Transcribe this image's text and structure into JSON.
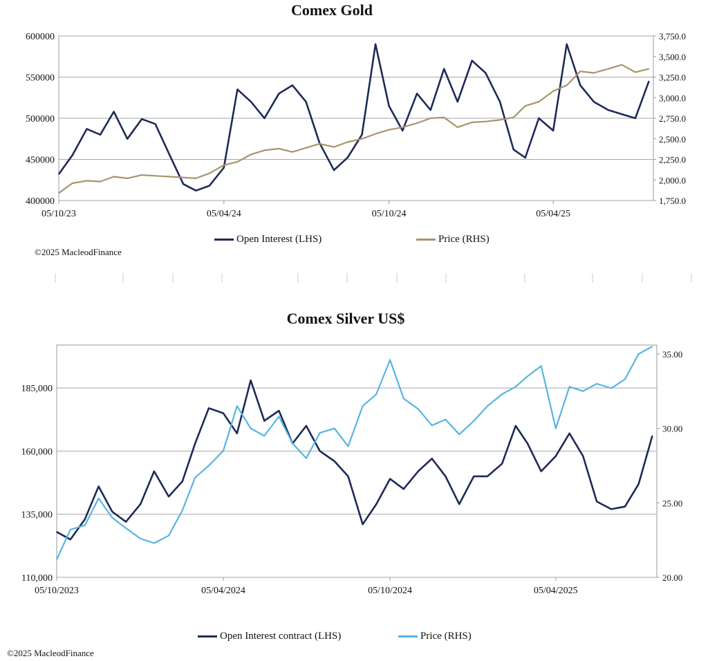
{
  "chart_data": [
    {
      "type": "line",
      "title": "Comex Gold",
      "x_ticks": [
        "05/10/23",
        "05/04/24",
        "05/10/24",
        "05/04/25"
      ],
      "y_left_ticks": [
        "400000",
        "450000",
        "500000",
        "550000",
        "600000"
      ],
      "y_left_lim": [
        400000,
        600000
      ],
      "y_right_ticks": [
        "1,750.0",
        "2,000.0",
        "2,250.0",
        "2,500.0",
        "2,750.0",
        "3,000.0",
        "3,250.0",
        "3,500.0",
        "3,750.0"
      ],
      "y_right_lim": [
        1750,
        3750
      ],
      "grid": true,
      "legend_position": "bottom",
      "colors": {
        "open_interest": "#1d2a57",
        "price": "#a8946a"
      },
      "series": [
        {
          "name": "Open Interest (LHS)",
          "axis": "left",
          "x": [
            "2023-10-05",
            "2023-10-20",
            "2023-11-05",
            "2023-11-20",
            "2023-12-05",
            "2023-12-20",
            "2024-01-05",
            "2024-01-20",
            "2024-02-05",
            "2024-02-20",
            "2024-03-05",
            "2024-03-20",
            "2024-04-05",
            "2024-04-20",
            "2024-05-05",
            "2024-05-20",
            "2024-06-05",
            "2024-06-20",
            "2024-07-05",
            "2024-07-20",
            "2024-08-05",
            "2024-08-20",
            "2024-09-05",
            "2024-09-20",
            "2024-10-05",
            "2024-10-20",
            "2024-11-05",
            "2024-11-20",
            "2024-12-05",
            "2024-12-20",
            "2025-01-05",
            "2025-01-20",
            "2025-02-05",
            "2025-02-20",
            "2025-03-05",
            "2025-03-20",
            "2025-04-05",
            "2025-04-20",
            "2025-05-05",
            "2025-05-20",
            "2025-06-05",
            "2025-06-20",
            "2025-07-05",
            "2025-07-20"
          ],
          "values": [
            432000,
            455000,
            487000,
            480000,
            508000,
            475000,
            499000,
            493000,
            455000,
            420000,
            412000,
            418000,
            440000,
            535000,
            520000,
            500000,
            530000,
            540000,
            520000,
            470000,
            437000,
            452000,
            480000,
            590000,
            515000,
            485000,
            530000,
            510000,
            560000,
            520000,
            570000,
            555000,
            520000,
            462000,
            452000,
            500000,
            485000,
            590000,
            540000,
            520000,
            510000,
            505000,
            500000,
            545000
          ]
        },
        {
          "name": "Price (RHS)",
          "axis": "right",
          "x": [
            "2023-10-05",
            "2023-10-20",
            "2023-11-05",
            "2023-11-20",
            "2023-12-05",
            "2023-12-20",
            "2024-01-05",
            "2024-01-20",
            "2024-02-05",
            "2024-02-20",
            "2024-03-05",
            "2024-03-20",
            "2024-04-05",
            "2024-04-20",
            "2024-05-05",
            "2024-05-20",
            "2024-06-05",
            "2024-06-20",
            "2024-07-05",
            "2024-07-20",
            "2024-08-05",
            "2024-08-20",
            "2024-09-05",
            "2024-09-20",
            "2024-10-05",
            "2024-10-20",
            "2024-11-05",
            "2024-11-20",
            "2024-12-05",
            "2024-12-20",
            "2025-01-05",
            "2025-01-20",
            "2025-02-05",
            "2025-02-20",
            "2025-03-05",
            "2025-03-20",
            "2025-04-05",
            "2025-04-20",
            "2025-05-05",
            "2025-05-20",
            "2025-06-05",
            "2025-06-20",
            "2025-07-05",
            "2025-07-20"
          ],
          "values": [
            1840,
            1960,
            1990,
            1980,
            2040,
            2020,
            2060,
            2050,
            2040,
            2030,
            2020,
            2080,
            2180,
            2220,
            2310,
            2360,
            2380,
            2340,
            2390,
            2440,
            2400,
            2460,
            2500,
            2560,
            2610,
            2640,
            2690,
            2750,
            2760,
            2640,
            2700,
            2710,
            2730,
            2760,
            2900,
            2950,
            3080,
            3150,
            3320,
            3300,
            3350,
            3400,
            3310,
            3350
          ]
        }
      ]
    },
    {
      "type": "line",
      "title": "Comex Silver US$",
      "x_ticks": [
        "05/10/2023",
        "05/04/2024",
        "05/10/2024",
        "05/04/2025"
      ],
      "y_left_ticks": [
        "110,000",
        "135,000",
        "160,000",
        "185,000"
      ],
      "y_left_lim": [
        110000,
        202000
      ],
      "y_right_ticks": [
        "20.00",
        "25.00",
        "30.00",
        "35.00"
      ],
      "y_right_lim": [
        20,
        35.6
      ],
      "grid": true,
      "legend_position": "bottom",
      "colors": {
        "open_interest": "#1d2a57",
        "price": "#56b4e3"
      },
      "series": [
        {
          "name": "Open Interest contract (LHS)",
          "axis": "left",
          "x": [
            "2023-10-05",
            "2023-10-20",
            "2023-11-05",
            "2023-11-20",
            "2023-12-05",
            "2023-12-20",
            "2024-01-05",
            "2024-01-20",
            "2024-02-05",
            "2024-02-20",
            "2024-03-05",
            "2024-03-20",
            "2024-04-05",
            "2024-04-20",
            "2024-05-05",
            "2024-05-20",
            "2024-06-05",
            "2024-06-20",
            "2024-07-05",
            "2024-07-20",
            "2024-08-05",
            "2024-08-20",
            "2024-09-05",
            "2024-09-20",
            "2024-10-05",
            "2024-10-20",
            "2024-11-05",
            "2024-11-20",
            "2024-12-05",
            "2024-12-20",
            "2025-01-05",
            "2025-01-20",
            "2025-02-05",
            "2025-02-20",
            "2025-03-05",
            "2025-03-20",
            "2025-04-05",
            "2025-04-20",
            "2025-05-05",
            "2025-05-20",
            "2025-06-05",
            "2025-06-20",
            "2025-07-05",
            "2025-07-20"
          ],
          "values": [
            128000,
            125000,
            133000,
            146000,
            136000,
            132000,
            139000,
            152000,
            142000,
            148000,
            163000,
            177000,
            175000,
            167000,
            188000,
            172000,
            176000,
            163000,
            170000,
            160000,
            156000,
            150000,
            131000,
            139000,
            149000,
            145000,
            152000,
            157000,
            150000,
            139000,
            150000,
            150000,
            155000,
            170000,
            163000,
            152000,
            158000,
            167000,
            158000,
            140000,
            137000,
            138000,
            147000,
            166000
          ]
        },
        {
          "name": "Price (RHS)",
          "axis": "right",
          "x": [
            "2023-10-05",
            "2023-10-20",
            "2023-11-05",
            "2023-11-20",
            "2023-12-05",
            "2023-12-20",
            "2024-01-05",
            "2024-01-20",
            "2024-02-05",
            "2024-02-20",
            "2024-03-05",
            "2024-03-20",
            "2024-04-05",
            "2024-04-20",
            "2024-05-05",
            "2024-05-20",
            "2024-06-05",
            "2024-06-20",
            "2024-07-05",
            "2024-07-20",
            "2024-08-05",
            "2024-08-20",
            "2024-09-05",
            "2024-09-20",
            "2024-10-05",
            "2024-10-20",
            "2024-11-05",
            "2024-11-20",
            "2024-12-05",
            "2024-12-20",
            "2025-01-05",
            "2025-01-20",
            "2025-02-05",
            "2025-02-20",
            "2025-03-05",
            "2025-03-20",
            "2025-04-05",
            "2025-04-20",
            "2025-05-05",
            "2025-05-20",
            "2025-06-05",
            "2025-06-20",
            "2025-07-05",
            "2025-07-20"
          ],
          "values": [
            21.2,
            23.2,
            23.5,
            25.3,
            24.0,
            23.3,
            22.6,
            22.3,
            22.8,
            24.5,
            26.7,
            27.5,
            28.5,
            31.5,
            30.0,
            29.5,
            30.8,
            29.0,
            28.0,
            29.7,
            30.0,
            28.8,
            31.5,
            32.3,
            34.6,
            32.0,
            31.3,
            30.2,
            30.6,
            29.6,
            30.5,
            31.5,
            32.3,
            32.8,
            33.5,
            34.2,
            30.0,
            32.8,
            32.5,
            33.0,
            32.7,
            33.3,
            35.0,
            35.5
          ]
        }
      ]
    }
  ],
  "gold": {
    "title": "Comex Gold",
    "legend_oi": "Open Interest (LHS)",
    "legend_price": "Price (RHS)",
    "copyright": "©2025 MacleodFinance"
  },
  "silver": {
    "title": "Comex Silver US$",
    "legend_oi": "Open Interest contract (LHS)",
    "legend_price": "Price (RHS)",
    "copyright": "©2025 MacleodFinance"
  }
}
